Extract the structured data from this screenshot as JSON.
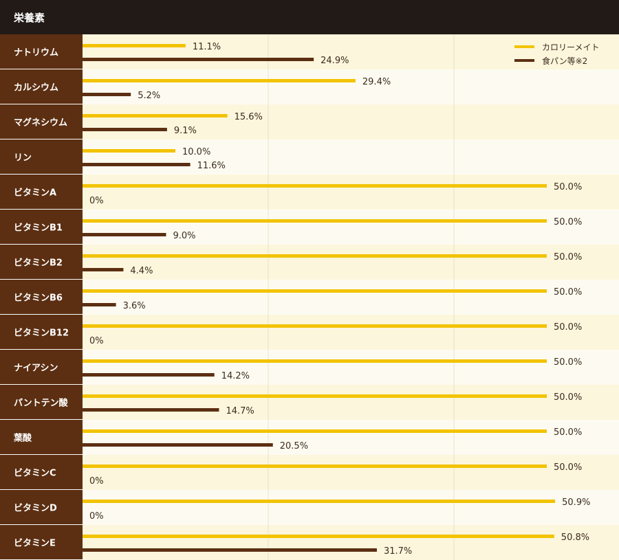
{
  "header": {
    "title": "栄養素"
  },
  "legend": {
    "items": [
      {
        "label": "カロリーメイト",
        "color": "#f2c300"
      },
      {
        "label": "食パン等※2",
        "color": "#5c2f12"
      }
    ]
  },
  "colors": {
    "header_bg": "#221a17",
    "label_bg": "#5c2f12",
    "row_odd": "#fcf6dc",
    "row_even": "#fdfbf1",
    "grid": "#e8e2cf",
    "text": "#3a2a1e"
  },
  "chart_data": {
    "type": "bar",
    "orientation": "horizontal",
    "categories": [
      "ナトリウム",
      "カルシウム",
      "マグネシウム",
      "リン",
      "ビタミンA",
      "ビタミンB1",
      "ビタミンB2",
      "ビタミンB6",
      "ビタミンB12",
      "ナイアシン",
      "パントテン酸",
      "葉酸",
      "ビタミンC",
      "ビタミンD",
      "ビタミンE"
    ],
    "series": [
      {
        "name": "カロリーメイト",
        "values": [
          11.1,
          29.4,
          15.6,
          10.0,
          50.0,
          50.0,
          50.0,
          50.0,
          50.0,
          50.0,
          50.0,
          50.0,
          50.0,
          50.9,
          50.8
        ]
      },
      {
        "name": "食パン等※2",
        "values": [
          24.9,
          5.2,
          9.1,
          11.6,
          0,
          9.0,
          4.4,
          3.6,
          0,
          14.2,
          14.7,
          20.5,
          0,
          0,
          31.7
        ]
      }
    ],
    "value_labels": [
      [
        "11.1%",
        "29.4%",
        "15.6%",
        "10.0%",
        "50.0%",
        "50.0%",
        "50.0%",
        "50.0%",
        "50.0%",
        "50.0%",
        "50.0%",
        "50.0%",
        "50.0%",
        "50.9%",
        "50.8%"
      ],
      [
        "24.9%",
        "5.2%",
        "9.1%",
        "11.6%",
        "0%",
        "9.0%",
        "4.4%",
        "3.6%",
        "0%",
        "14.2%",
        "14.7%",
        "20.5%",
        "0%",
        "0%",
        "31.7%"
      ]
    ],
    "xlim": [
      0,
      50
    ],
    "legend_position": "top-right"
  }
}
